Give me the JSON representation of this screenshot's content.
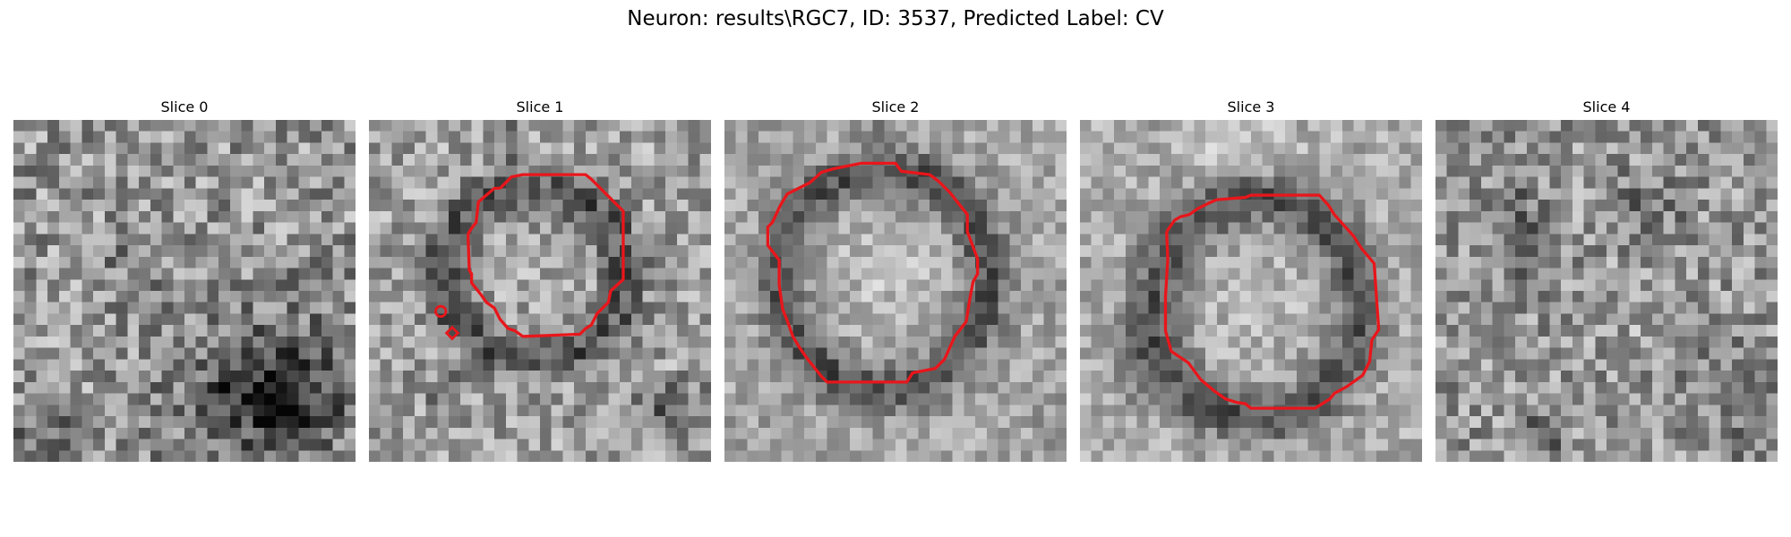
{
  "figure": {
    "title": "Neuron: results\\RGC7, ID: 3537, Predicted Label: CV"
  },
  "panels": [
    {
      "title": "Slice 0",
      "has_contour": false
    },
    {
      "title": "Slice 1",
      "has_contour": true
    },
    {
      "title": "Slice 2",
      "has_contour": true
    },
    {
      "title": "Slice 3",
      "has_contour": true
    },
    {
      "title": "Slice 4",
      "has_contour": false
    }
  ],
  "colors": {
    "contour": "#e8161b",
    "background": "#ffffff"
  }
}
